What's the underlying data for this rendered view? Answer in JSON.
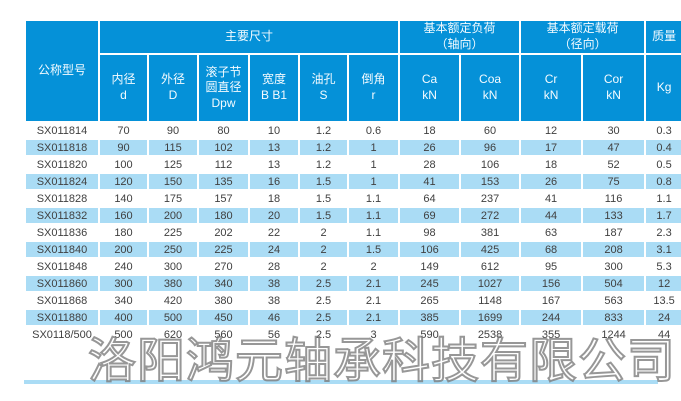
{
  "company_watermark": "洛阳鸿元轴承科技有限公司",
  "colors": {
    "header_blue": "#0591d8",
    "stripe_blue": "#aadcf5",
    "body_text": "#404040",
    "header_text": "#f4fbff"
  },
  "table": {
    "corner_header": "公称型号",
    "groups": {
      "dimensions": "主要尺寸",
      "axial_load": "基本额定负荷\n（轴向）",
      "radial_load": "基本额定载荷\n（径向）",
      "mass": "质量"
    },
    "columns": [
      "内径\nd",
      "外径\nD",
      "滚子节\n圆直径\nDpw",
      "宽度\nB B1",
      "油孔\nS",
      "倒角\nr",
      "Ca\nkN",
      "Coa\nkN",
      "Cr\nkN",
      "Cor\nkN",
      "Kg"
    ],
    "rows": [
      [
        "SX011814",
        "70",
        "90",
        "80",
        "10",
        "1.2",
        "0.6",
        "18",
        "60",
        "12",
        "30",
        "0.3"
      ],
      [
        "SX011818",
        "90",
        "115",
        "102",
        "13",
        "1.2",
        "1",
        "26",
        "96",
        "17",
        "47",
        "0.4"
      ],
      [
        "SX011820",
        "100",
        "125",
        "112",
        "13",
        "1.2",
        "1",
        "28",
        "106",
        "18",
        "52",
        "0.5"
      ],
      [
        "SX011824",
        "120",
        "150",
        "135",
        "16",
        "1.5",
        "1",
        "41",
        "153",
        "26",
        "75",
        "0.8"
      ],
      [
        "SX011828",
        "140",
        "175",
        "157",
        "18",
        "1.5",
        "1.1",
        "64",
        "237",
        "41",
        "116",
        "1.1"
      ],
      [
        "SX011832",
        "160",
        "200",
        "180",
        "20",
        "1.5",
        "1.1",
        "69",
        "272",
        "44",
        "133",
        "1.7"
      ],
      [
        "SX011836",
        "180",
        "225",
        "202",
        "22",
        "2",
        "1.1",
        "98",
        "381",
        "63",
        "187",
        "2.3"
      ],
      [
        "SX011840",
        "200",
        "250",
        "225",
        "24",
        "2",
        "1.5",
        "106",
        "425",
        "68",
        "208",
        "3.1"
      ],
      [
        "SX011848",
        "240",
        "300",
        "270",
        "28",
        "2",
        "2",
        "149",
        "612",
        "95",
        "300",
        "5.3"
      ],
      [
        "SX011860",
        "300",
        "380",
        "340",
        "38",
        "2.5",
        "2.1",
        "245",
        "1027",
        "156",
        "504",
        "12"
      ],
      [
        "SX011868",
        "340",
        "420",
        "380",
        "38",
        "2.5",
        "2.1",
        "265",
        "1148",
        "167",
        "563",
        "13.5"
      ],
      [
        "SX011880",
        "400",
        "500",
        "450",
        "46",
        "2.5",
        "2.1",
        "385",
        "1699",
        "244",
        "833",
        "24"
      ],
      [
        "SX0118/500",
        "500",
        "620",
        "560",
        "56",
        "2.5",
        "3",
        "590",
        "2538",
        "355",
        "1244",
        "44"
      ]
    ]
  }
}
